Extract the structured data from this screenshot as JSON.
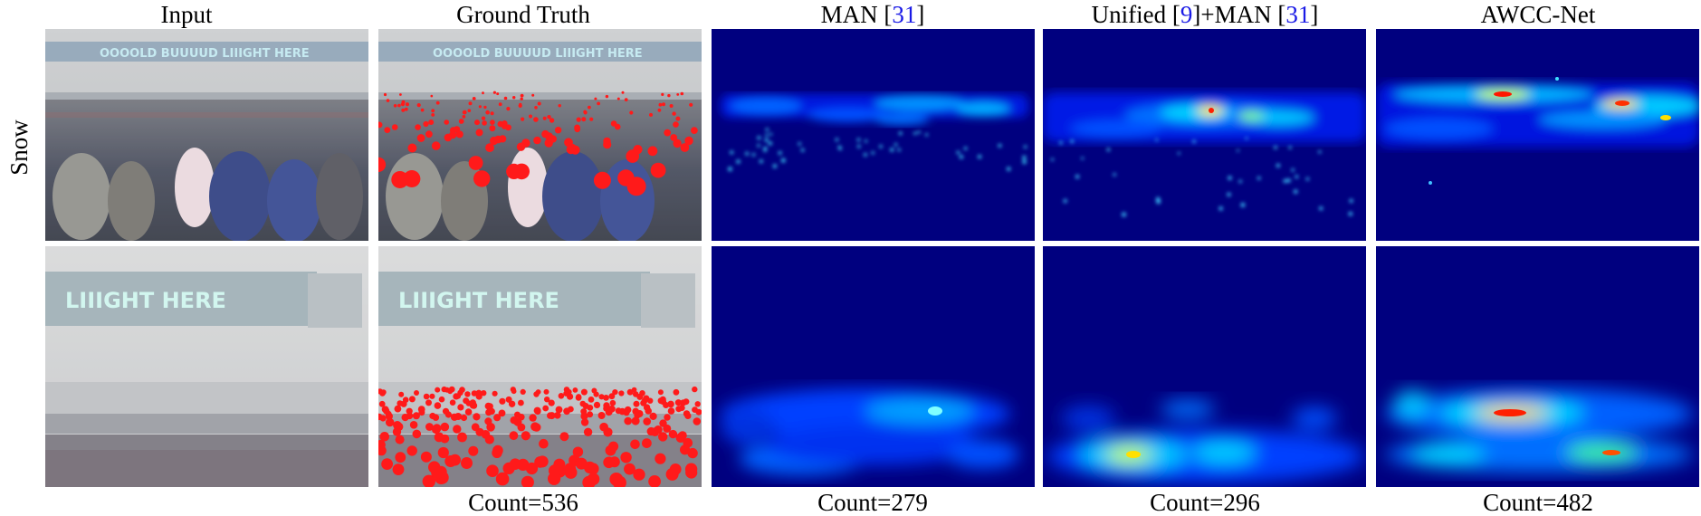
{
  "columns": [
    {
      "pre": "Input",
      "ref1": "",
      "mid": "",
      "ref2": "",
      "post": ""
    },
    {
      "pre": "Ground Truth",
      "ref1": "",
      "mid": "",
      "ref2": "",
      "post": ""
    },
    {
      "pre": "MAN [",
      "ref1": "31",
      "mid": "]",
      "ref2": "",
      "post": ""
    },
    {
      "pre": "Unified [",
      "ref1": "9",
      "mid": "]+MAN [",
      "ref2": "31",
      "post": "]"
    },
    {
      "pre": "AWCC-Net",
      "ref1": "",
      "mid": "",
      "ref2": "",
      "post": ""
    }
  ],
  "row_label": "Snow",
  "counts": {
    "ground_truth": "Count=536",
    "man": "Count=279",
    "unified_man": "Count=296",
    "awcc_net": "Count=482"
  },
  "colors": {
    "citation": "#1a1ae6",
    "heatmap_background": "#00007f",
    "annotation_dot": "#ff1a1a"
  }
}
